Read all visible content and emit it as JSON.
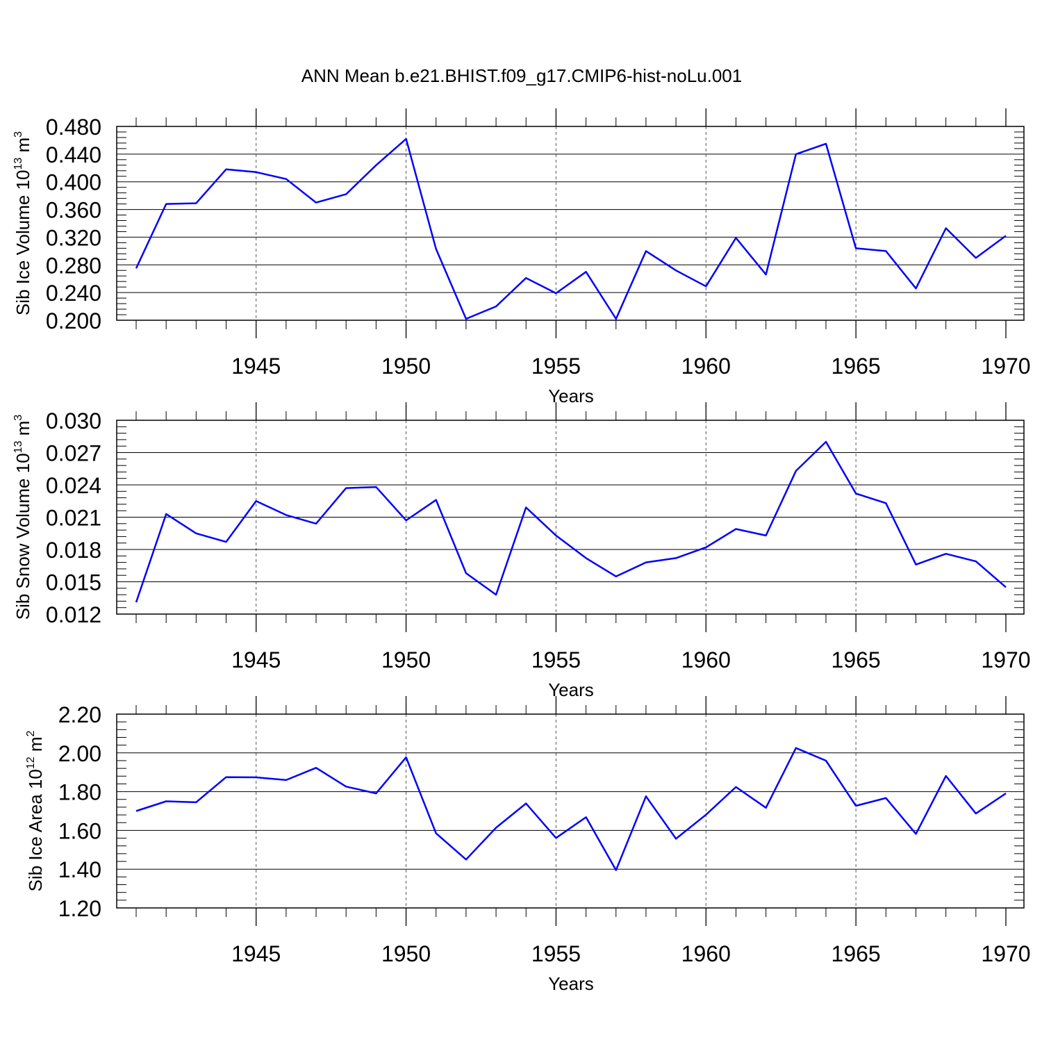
{
  "title": "ANN Mean b.e21.BHIST.f09_g17.CMIP6-hist-noLu.001",
  "line_color": "#0000ff",
  "chart_data": [
    {
      "type": "line",
      "xlabel": "Years",
      "ylabel": {
        "main": "Sib Ice Volume 10",
        "sup1": "13",
        "unit": " m",
        "sup2": "3"
      },
      "xlim": [
        1941,
        1970
      ],
      "ylim": [
        0.2,
        0.48
      ],
      "yticks": [
        "0.200",
        "0.240",
        "0.280",
        "0.320",
        "0.360",
        "0.400",
        "0.440",
        "0.480"
      ],
      "xticks": [
        "1945",
        "1950",
        "1955",
        "1960",
        "1965",
        "1970"
      ],
      "x": [
        1941,
        1942,
        1943,
        1944,
        1945,
        1946,
        1947,
        1948,
        1949,
        1950,
        1951,
        1952,
        1953,
        1954,
        1955,
        1956,
        1957,
        1958,
        1959,
        1960,
        1961,
        1962,
        1963,
        1964,
        1965,
        1966,
        1967,
        1968,
        1969,
        1970
      ],
      "series": [
        {
          "values": [
            0.275,
            0.368,
            0.369,
            0.418,
            0.414,
            0.404,
            0.37,
            0.382,
            0.424,
            0.462,
            0.303,
            0.202,
            0.22,
            0.261,
            0.239,
            0.27,
            0.202,
            0.3,
            0.272,
            0.249,
            0.319,
            0.266,
            0.44,
            0.455,
            0.304,
            0.3,
            0.246,
            0.333,
            0.29,
            0.322
          ]
        }
      ]
    },
    {
      "type": "line",
      "xlabel": "Years",
      "ylabel": {
        "main": "Sib Snow Volume 10",
        "sup1": "13",
        "unit": " m",
        "sup2": "3"
      },
      "xlim": [
        1941,
        1970
      ],
      "ylim": [
        0.012,
        0.03
      ],
      "yticks": [
        "0.012",
        "0.015",
        "0.018",
        "0.021",
        "0.024",
        "0.027",
        "0.030"
      ],
      "xticks": [
        "1945",
        "1950",
        "1955",
        "1960",
        "1965",
        "1970"
      ],
      "x": [
        1941,
        1942,
        1943,
        1944,
        1945,
        1946,
        1947,
        1948,
        1949,
        1950,
        1951,
        1952,
        1953,
        1954,
        1955,
        1956,
        1957,
        1958,
        1959,
        1960,
        1961,
        1962,
        1963,
        1964,
        1965,
        1966,
        1967,
        1968,
        1969,
        1970
      ],
      "series": [
        {
          "values": [
            0.0131,
            0.0213,
            0.0195,
            0.0187,
            0.0225,
            0.0212,
            0.0204,
            0.0237,
            0.0238,
            0.0207,
            0.0226,
            0.0158,
            0.0138,
            0.0219,
            0.0193,
            0.0172,
            0.0155,
            0.0168,
            0.0172,
            0.0182,
            0.0199,
            0.0193,
            0.0253,
            0.028,
            0.0232,
            0.0223,
            0.0166,
            0.0176,
            0.0169,
            0.0145
          ]
        }
      ]
    },
    {
      "type": "line",
      "xlabel": "Years",
      "ylabel": {
        "main": "Sib Ice Area 10",
        "sup1": "12",
        "unit": " m",
        "sup2": "2"
      },
      "xlim": [
        1941,
        1970
      ],
      "ylim": [
        1.2,
        2.2
      ],
      "yticks": [
        "1.20",
        "1.40",
        "1.60",
        "1.80",
        "2.00",
        "2.20"
      ],
      "xticks": [
        "1945",
        "1950",
        "1955",
        "1960",
        "1965",
        "1970"
      ],
      "x": [
        1941,
        1942,
        1943,
        1944,
        1945,
        1946,
        1947,
        1948,
        1949,
        1950,
        1951,
        1952,
        1953,
        1954,
        1955,
        1956,
        1957,
        1958,
        1959,
        1960,
        1961,
        1962,
        1963,
        1964,
        1965,
        1966,
        1967,
        1968,
        1969,
        1970
      ],
      "series": [
        {
          "values": [
            1.7,
            1.75,
            1.745,
            1.875,
            1.874,
            1.86,
            1.923,
            1.826,
            1.791,
            1.977,
            1.585,
            1.45,
            1.614,
            1.739,
            1.561,
            1.668,
            1.395,
            1.776,
            1.557,
            1.681,
            1.824,
            1.717,
            2.025,
            1.96,
            1.727,
            1.767,
            1.582,
            1.881,
            1.687,
            1.791
          ]
        }
      ]
    }
  ]
}
